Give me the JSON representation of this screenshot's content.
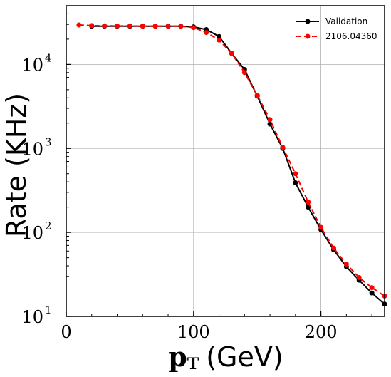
{
  "chart_data": {
    "type": "line",
    "xlabel": "p",
    "xlabel_sub": "T",
    "xlabel_unit": "(GeV)",
    "ylabel": "Rate (KHz)",
    "xlim": [
      0,
      250
    ],
    "ylim": [
      10,
      50000
    ],
    "yscale": "log",
    "grid": true,
    "legend_position": "top-right",
    "x_ticks": [
      "0",
      "100",
      "200"
    ],
    "y_ticks": [
      {
        "base": "10",
        "exp": "1"
      },
      {
        "base": "10",
        "exp": "2"
      },
      {
        "base": "10",
        "exp": "3"
      },
      {
        "base": "10",
        "exp": "4"
      }
    ],
    "series": [
      {
        "name": "Validation",
        "color": "#000000",
        "dashed": false,
        "x": [
          20,
          30,
          40,
          50,
          60,
          70,
          80,
          90,
          100,
          110,
          120,
          130,
          140,
          150,
          160,
          170,
          180,
          190,
          200,
          210,
          220,
          230,
          240,
          250
        ],
        "y": [
          28500,
          28500,
          28500,
          28500,
          28500,
          28500,
          28500,
          28500,
          28000,
          26000,
          21500,
          13500,
          8700,
          4200,
          1950,
          1000,
          390,
          200,
          108,
          62,
          39,
          27,
          19,
          14
        ]
      },
      {
        "name": "2106.04360",
        "color": "#ff0000",
        "dashed": true,
        "x": [
          10,
          20,
          30,
          40,
          50,
          60,
          70,
          80,
          90,
          100,
          110,
          120,
          130,
          140,
          150,
          160,
          170,
          180,
          190,
          200,
          210,
          220,
          230,
          240,
          250
        ],
        "y": [
          29500,
          29000,
          28800,
          28700,
          28700,
          28600,
          28600,
          28500,
          28500,
          27500,
          24000,
          19500,
          13500,
          8000,
          4300,
          2200,
          1030,
          500,
          230,
          115,
          65,
          42,
          29,
          22,
          17.5
        ]
      }
    ]
  }
}
